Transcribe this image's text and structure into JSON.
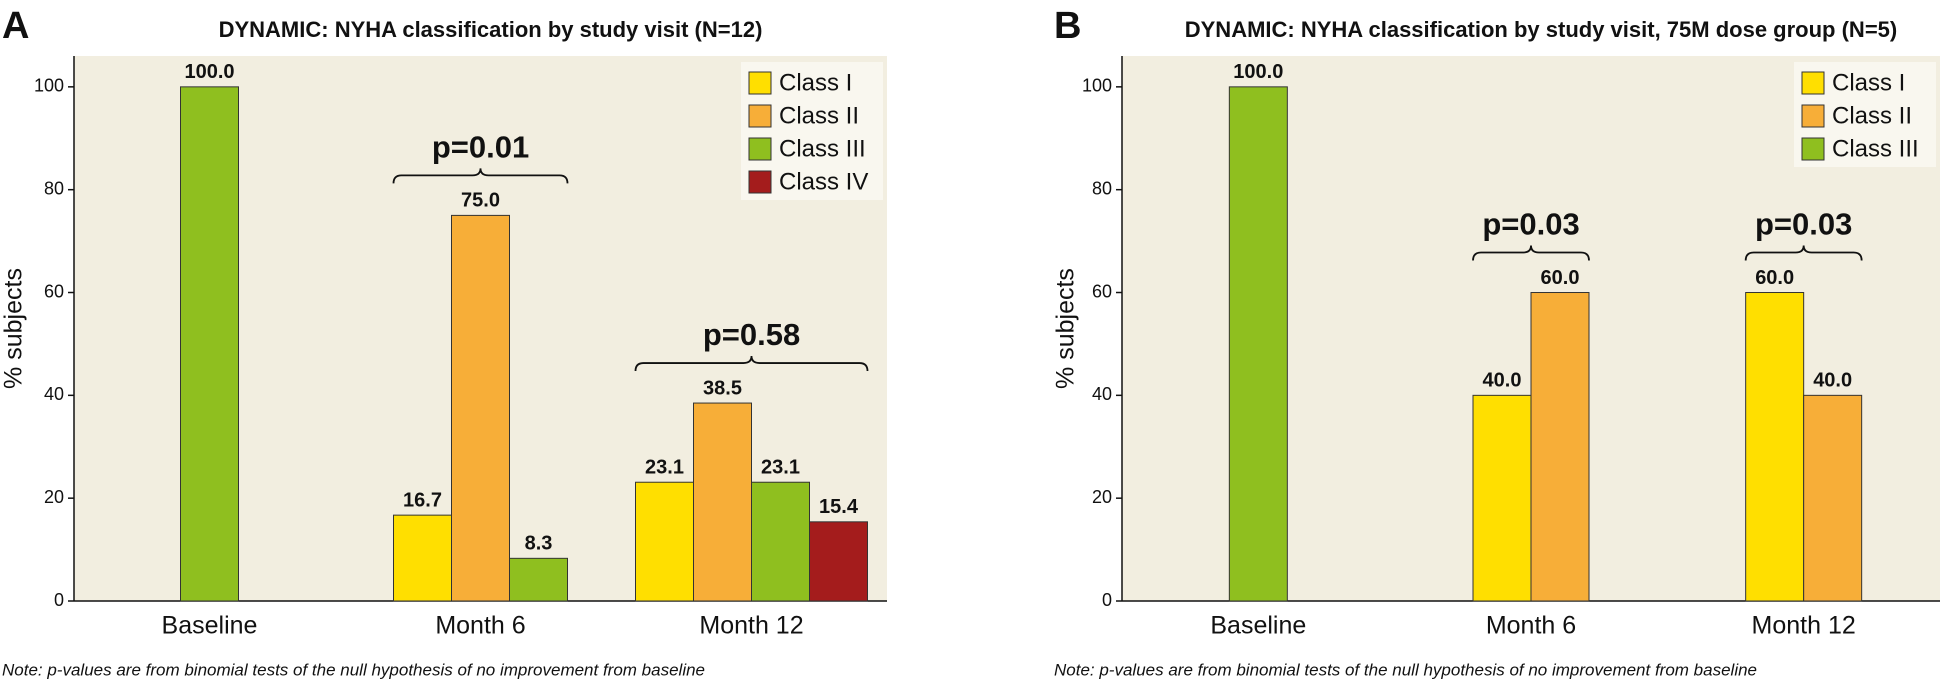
{
  "chart_data": [
    {
      "type": "bar",
      "panel": "A",
      "title": "DYNAMIC: NYHA classification by study visit (N=12)",
      "ylabel": "% subjects",
      "categories": [
        "Baseline",
        "Month 6",
        "Month 12"
      ],
      "series": [
        {
          "name": "Class I",
          "color": "#ffdf00",
          "values": [
            null,
            16.7,
            23.1
          ],
          "value_labels": [
            null,
            "16.7",
            "23.1"
          ]
        },
        {
          "name": "Class II",
          "color": "#f7ae38",
          "values": [
            null,
            75,
            38.5
          ],
          "value_labels": [
            null,
            "75.0",
            "38.5"
          ]
        },
        {
          "name": "Class III",
          "color": "#8fbf1f",
          "values": [
            100,
            8.3,
            23.1
          ],
          "value_labels": [
            "100.0",
            "8.3",
            "23.1"
          ]
        },
        {
          "name": "Class IV",
          "color": "#a41c1c",
          "values": [
            null,
            null,
            15.4
          ],
          "value_labels": [
            null,
            null,
            "15.4"
          ]
        }
      ],
      "annotations": [
        null,
        "p=0.01",
        "p=0.58"
      ],
      "ylim": [
        0,
        106
      ],
      "yticks": [
        0,
        20,
        40,
        60,
        80,
        100
      ],
      "legend": "top-right",
      "note": "Note: p-values are from binomial tests of the null hypothesis of no improvement from baseline"
    },
    {
      "type": "bar",
      "panel": "B",
      "title": "DYNAMIC: NYHA classification by study visit, 75M dose group (N=5)",
      "ylabel": "% subjects",
      "categories": [
        "Baseline",
        "Month 6",
        "Month 12"
      ],
      "series": [
        {
          "name": "Class I",
          "color": "#ffdf00",
          "values": [
            null,
            40,
            60
          ],
          "value_labels": [
            null,
            "40.0",
            "60.0"
          ]
        },
        {
          "name": "Class II",
          "color": "#f7ae38",
          "values": [
            null,
            60,
            40
          ],
          "value_labels": [
            null,
            "60.0",
            "40.0"
          ]
        },
        {
          "name": "Class III",
          "color": "#8fbf1f",
          "values": [
            100,
            null,
            null
          ],
          "value_labels": [
            "100.0",
            null,
            null
          ]
        }
      ],
      "annotations": [
        null,
        "p=0.03",
        "p=0.03"
      ],
      "ylim": [
        0,
        106
      ],
      "yticks": [
        0,
        20,
        40,
        60,
        80,
        100
      ],
      "legend": "top-right",
      "note": "Note: p-values are from binomial tests of the null hypothesis of no improvement from baseline"
    }
  ]
}
